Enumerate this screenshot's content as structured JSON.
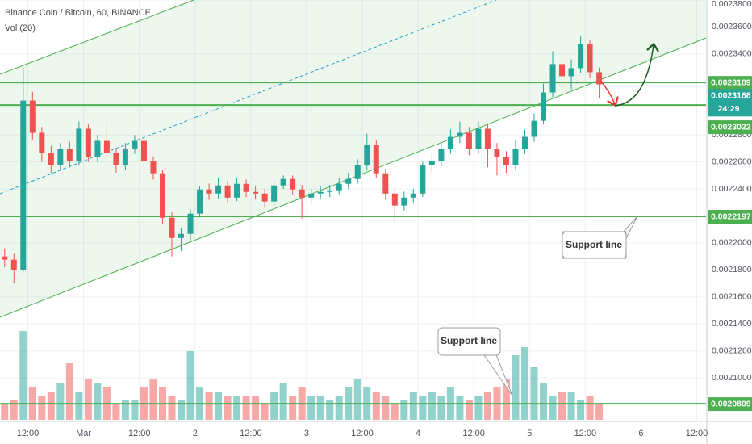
{
  "header": {
    "title": "Binance Coin / Bitcoin, 60, BINANCE",
    "volume_label": "Vol (20)"
  },
  "chart_data": {
    "type": "candlestick",
    "x": [
      1,
      3,
      5,
      7,
      9,
      11,
      13,
      15,
      17,
      19,
      21,
      23,
      25,
      27,
      29,
      31,
      33,
      35,
      37,
      39,
      41,
      43,
      45,
      47,
      49,
      51,
      53,
      55,
      57,
      59,
      61,
      63,
      65,
      67,
      69,
      71,
      73,
      75,
      77,
      79,
      81,
      83,
      85,
      87,
      89,
      91,
      93,
      95,
      97,
      99,
      101,
      103,
      105,
      107,
      109,
      111,
      113,
      115,
      117,
      119,
      121,
      123,
      125,
      127,
      129
    ],
    "open": [
      0.00219,
      0.0021876,
      0.0021798,
      0.0023055,
      0.0022816,
      0.0022666,
      0.0022576,
      0.0022696,
      0.0022606,
      0.0022846,
      0.0022636,
      0.0022756,
      0.0022666,
      0.0022576,
      0.0022696,
      0.0022756,
      0.0022606,
      0.0022516,
      0.0022187,
      0.0022037,
      0.0022067,
      0.0022217,
      0.0022396,
      0.0022366,
      0.0022426,
      0.0022336,
      0.0022438,
      0.0022378,
      0.0022366,
      0.0022307,
      0.0022426,
      0.0022474,
      0.0022396,
      0.0022336,
      0.0022366,
      0.0022378,
      0.002239,
      0.0022438,
      0.0022474,
      0.0022576,
      0.0022726,
      0.0022516,
      0.0022366,
      0.0022277,
      0.0022336,
      0.0022366,
      0.0022576,
      0.0022606,
      0.0022696,
      0.0022786,
      0.0022816,
      0.0022696,
      0.0022846,
      0.0022696,
      0.0022636,
      0.0022576,
      0.0022696,
      0.0022786,
      0.0022905,
      0.0023115,
      0.0023325,
      0.0023235,
      0.0023295,
      0.0023474,
      0.0023265
    ],
    "high": [
      0.002196,
      0.002192,
      0.00233,
      0.002312,
      0.002286,
      0.002272,
      0.002274,
      0.002275,
      0.00229,
      0.002288,
      0.00228,
      0.002288,
      0.00227,
      0.002274,
      0.00228,
      0.002279,
      0.002264,
      0.002254,
      0.002223,
      0.002211,
      0.002225,
      0.002242,
      0.002244,
      0.002248,
      0.002246,
      0.002248,
      0.002247,
      0.002242,
      0.00224,
      0.002246,
      0.00225,
      0.00225,
      0.002243,
      0.00224,
      0.002242,
      0.002243,
      0.002248,
      0.002252,
      0.002262,
      0.002281,
      0.002276,
      0.002255,
      0.00224,
      0.002238,
      0.00224,
      0.00226,
      0.002266,
      0.002274,
      0.002284,
      0.00229,
      0.002286,
      0.00229,
      0.002288,
      0.002274,
      0.002268,
      0.002276,
      0.002284,
      0.002296,
      0.002318,
      0.002342,
      0.002338,
      0.002336,
      0.002353,
      0.00235,
      0.00233
    ],
    "low": [
      0.002182,
      0.00217,
      0.002178,
      0.002276,
      0.00226,
      0.002252,
      0.002254,
      0.002256,
      0.002258,
      0.00226,
      0.00226,
      0.002262,
      0.002252,
      0.002254,
      0.002266,
      0.002256,
      0.002247,
      0.002214,
      0.00219,
      0.002194,
      0.002202,
      0.002219,
      0.002232,
      0.002233,
      0.00223,
      0.002231,
      0.002234,
      0.002232,
      0.002226,
      0.002228,
      0.00224,
      0.002236,
      0.002218,
      0.00223,
      0.002233,
      0.002234,
      0.002236,
      0.00224,
      0.002244,
      0.002254,
      0.002248,
      0.002232,
      0.002216,
      0.002224,
      0.00223,
      0.002234,
      0.002252,
      0.002257,
      0.002266,
      0.002274,
      0.002265,
      0.002266,
      0.002256,
      0.00225,
      0.002252,
      0.002254,
      0.002266,
      0.002275,
      0.002288,
      0.002308,
      0.002312,
      0.002314,
      0.002326,
      0.002322,
      0.002307
    ],
    "close": [
      0.0021876,
      0.0021798,
      0.0023055,
      0.0022816,
      0.0022666,
      0.0022576,
      0.0022696,
      0.0022606,
      0.0022846,
      0.0022636,
      0.0022756,
      0.0022666,
      0.0022576,
      0.0022696,
      0.0022756,
      0.0022606,
      0.0022516,
      0.0022187,
      0.0022037,
      0.0022067,
      0.0022217,
      0.0022396,
      0.0022366,
      0.0022426,
      0.0022336,
      0.0022438,
      0.0022378,
      0.0022366,
      0.0022307,
      0.0022426,
      0.0022474,
      0.0022396,
      0.0022336,
      0.0022366,
      0.0022378,
      0.002239,
      0.0022438,
      0.0022474,
      0.0022576,
      0.0022726,
      0.0022516,
      0.0022366,
      0.0022277,
      0.0022336,
      0.0022366,
      0.0022576,
      0.0022606,
      0.0022696,
      0.0022786,
      0.0022816,
      0.0022696,
      0.0022846,
      0.0022696,
      0.0022636,
      0.0022576,
      0.0022696,
      0.0022786,
      0.0022905,
      0.0023115,
      0.0023325,
      0.0023235,
      0.0023295,
      0.0023474,
      0.0023265,
      0.0023175
    ],
    "volume": [
      20,
      25,
      110,
      40,
      30,
      35,
      45,
      70,
      35,
      50,
      45,
      40,
      20,
      25,
      25,
      40,
      50,
      40,
      30,
      25,
      85,
      40,
      35,
      35,
      30,
      30,
      30,
      30,
      20,
      35,
      45,
      30,
      40,
      30,
      30,
      25,
      30,
      40,
      50,
      40,
      35,
      30,
      20,
      25,
      35,
      30,
      35,
      30,
      40,
      30,
      25,
      30,
      35,
      40,
      50,
      80,
      90,
      65,
      45,
      30,
      35,
      35,
      25,
      30,
      20
    ],
    "xlim": [
      0,
      152
    ],
    "xticks": [
      {
        "value": 6,
        "label": "12:00"
      },
      {
        "value": 18,
        "label": "Mar"
      },
      {
        "value": 30,
        "label": "12:00"
      },
      {
        "value": 42,
        "label": "2"
      },
      {
        "value": 54,
        "label": "12:00"
      },
      {
        "value": 66,
        "label": "3"
      },
      {
        "value": 78,
        "label": "12:00"
      },
      {
        "value": 90,
        "label": "4"
      },
      {
        "value": 102,
        "label": "12:00"
      },
      {
        "value": 114,
        "label": "5"
      },
      {
        "value": 126,
        "label": "12:00"
      },
      {
        "value": 138,
        "label": "6"
      },
      {
        "value": 150,
        "label": "12:00"
      }
    ],
    "ylim": [
      0.002069,
      0.00238
    ],
    "yticks": [
      {
        "value": 0.00238,
        "label": "0.0023800"
      },
      {
        "value": 0.00236,
        "label": "0.0023600"
      },
      {
        "value": 0.00234,
        "label": "0.0023400"
      },
      {
        "value": 0.00228,
        "label": "0.0022800"
      },
      {
        "value": 0.00226,
        "label": "0.0022600"
      },
      {
        "value": 0.00224,
        "label": "0.0022400"
      },
      {
        "value": 0.0022,
        "label": "0.0022000"
      },
      {
        "value": 0.00218,
        "label": "0.0021800"
      },
      {
        "value": 0.00216,
        "label": "0.0021600"
      },
      {
        "value": 0.00214,
        "label": "0.0021400"
      },
      {
        "value": 0.00212,
        "label": "0.0021200"
      },
      {
        "value": 0.0021,
        "label": "0.0021000"
      }
    ],
    "up_color": "#26a69a",
    "down_color": "#ef5350",
    "level_color": "#4caf50",
    "grid": true,
    "levels": [
      0.0023189,
      0.0023022,
      0.0022197,
      0.0020809
    ],
    "last_price": 0.0023188,
    "countdown": "24:29",
    "annotations": [
      "Support line",
      "Support line"
    ]
  }
}
